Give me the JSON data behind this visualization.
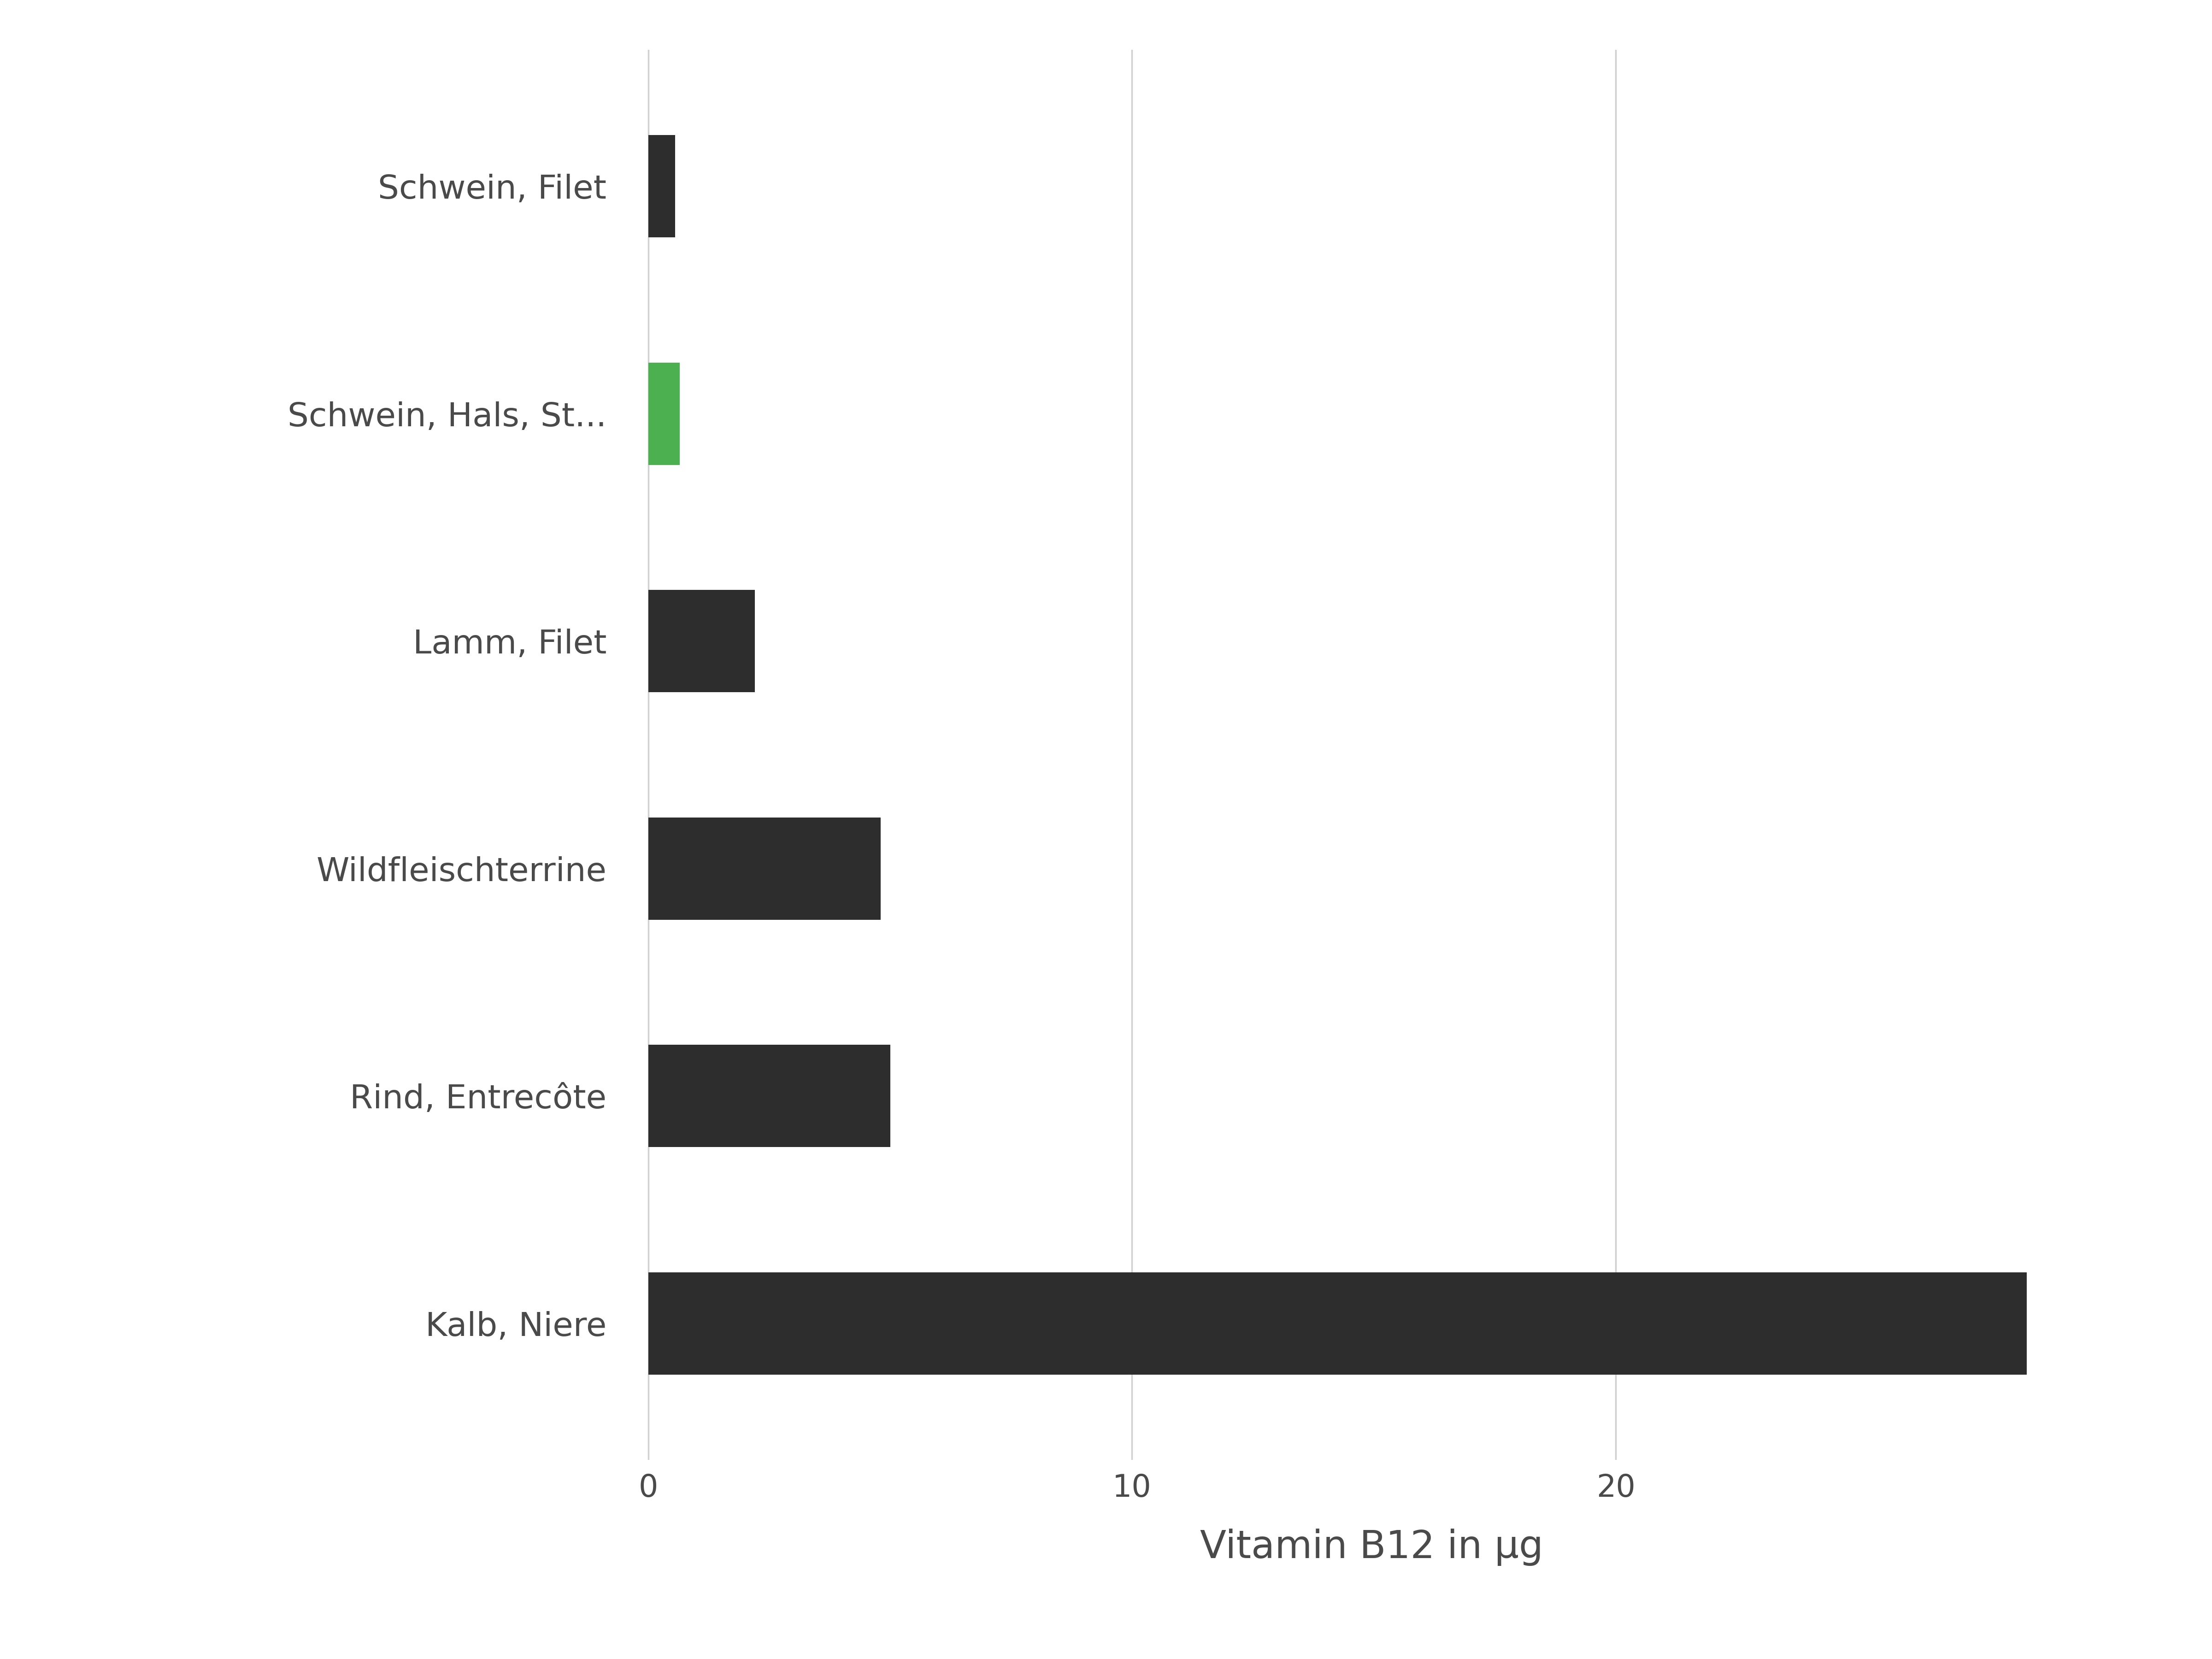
{
  "categories": [
    "Kalb, Niere",
    "Rind, Entrecôte",
    "Wildfleischterrine",
    "Lamm, Filet",
    "Schwein, Hals, St...",
    "Schwein, Filet"
  ],
  "values": [
    28.5,
    5.0,
    4.8,
    2.2,
    0.65,
    0.55
  ],
  "colors": [
    "#2d2d2d",
    "#2d2d2d",
    "#2d2d2d",
    "#2d2d2d",
    "#4caf50",
    "#2d2d2d"
  ],
  "xlabel": "Vitamin B12 in µg",
  "xlim": [
    -0.6,
    30.5
  ],
  "xticks": [
    0,
    10,
    20
  ],
  "background_color": "#ffffff",
  "grid_color": "#d0d0d0",
  "bar_height": 0.45,
  "label_color": "#4a4a4a",
  "label_fontsize": 52,
  "xlabel_fontsize": 60,
  "tick_fontsize": 48
}
